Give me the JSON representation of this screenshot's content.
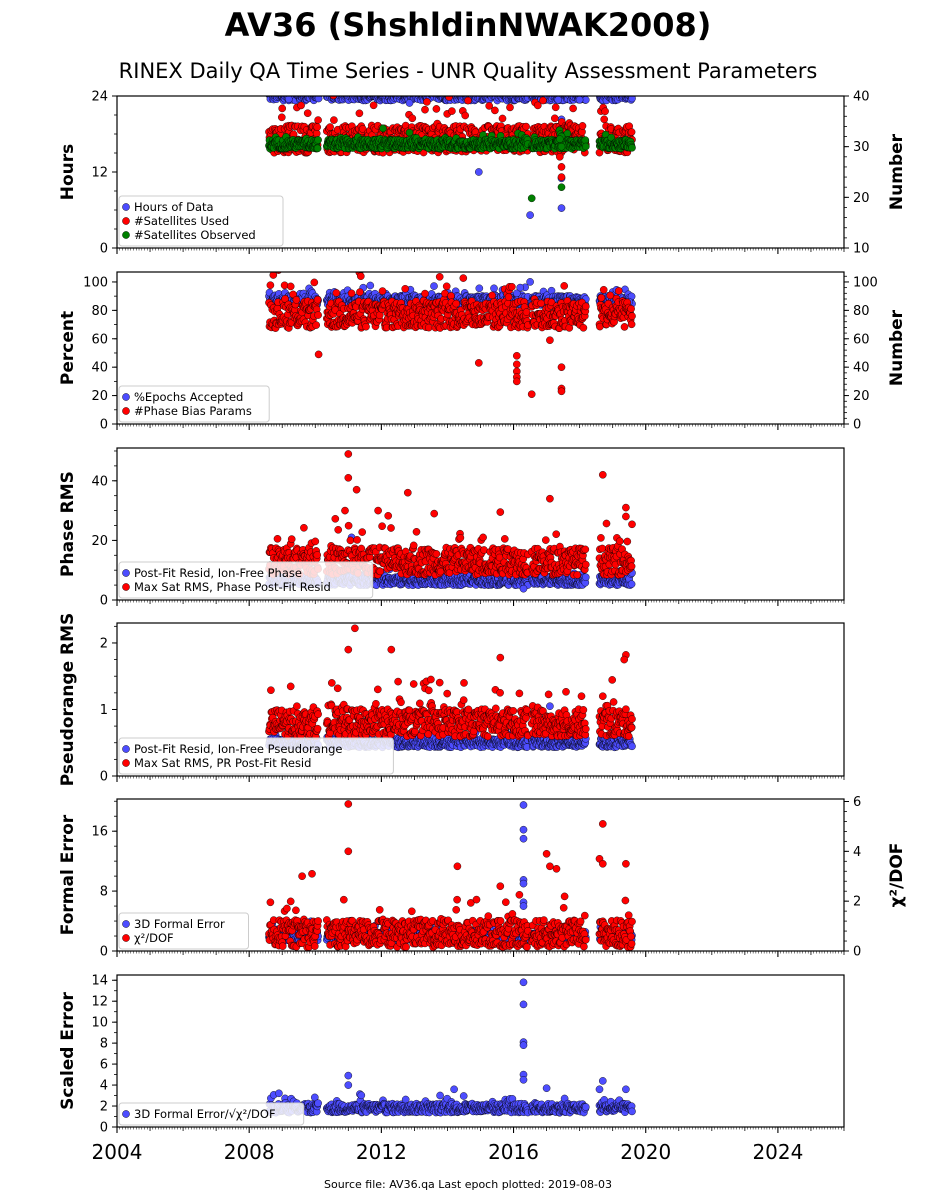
{
  "title": "AV36 (ShshldinNWAK2008)",
  "subtitle": "RINEX Daily QA Time Series - UNR Quality Assessment Parameters",
  "footer": "Source file: AV36.qa Last epoch plotted: 2019-08-03",
  "colors": {
    "blue": "#4d4dff",
    "red": "#ff0000",
    "green": "#008000"
  },
  "chart_data": {
    "type": "scatter",
    "x_range": [
      2004,
      2026
    ],
    "x_ticks": [
      2004,
      2008,
      2012,
      2016,
      2020,
      2024
    ],
    "x_tick_labels": [
      "2004",
      "2008",
      "2012",
      "2016",
      "2020",
      "2024"
    ],
    "panels": [
      {
        "ylabel": "Hours",
        "ylabel_right": "Number",
        "ylim": [
          0,
          24
        ],
        "yticks": [
          0,
          12,
          24
        ],
        "ylim_right": [
          10,
          40
        ],
        "yticks_right": [
          10,
          20,
          30,
          40
        ],
        "legend": [
          "Hours of Data",
          "#Satellites Used",
          "#Satellites Observed"
        ],
        "series": [
          {
            "name": "Hours of Data",
            "color": "blue",
            "axis": "left",
            "base": 24,
            "points": [
              [
                2010.1,
                23.6
              ],
              [
                2012.85,
                22.9
              ],
              [
                2014.95,
                12.0
              ],
              [
                2016.5,
                5.2
              ],
              [
                2017.2,
                16.5
              ],
              [
                2017.35,
                23.4
              ],
              [
                2017.45,
                20.3
              ],
              [
                2017.45,
                11.0
              ],
              [
                2017.45,
                6.3
              ],
              [
                2018.0,
                23.4
              ],
              [
                2009.2,
                23.5
              ]
            ]
          },
          {
            "name": "#Satellites Used",
            "color": "red",
            "axis": "right",
            "base": 31.5,
            "points": [
              [
                2017.4,
                28.0
              ],
              [
                2017.45,
                26.0
              ],
              [
                2017.45,
                24.0
              ],
              [
                2009.1,
                29.5
              ]
            ]
          },
          {
            "name": "#Satellites Observed",
            "color": "green",
            "axis": "right",
            "base": 30.5,
            "points": [
              [
                2016.55,
                19.8
              ],
              [
                2017.45,
                22.0
              ],
              [
                2017.45,
                30.0
              ],
              [
                2017.45,
                32.0
              ],
              [
                2017.4,
                31.5
              ]
            ]
          }
        ]
      },
      {
        "ylabel": "Percent",
        "ylabel_right": "Number",
        "ylim": [
          0,
          107
        ],
        "yticks": [
          0,
          20,
          40,
          60,
          80,
          100
        ],
        "ylim_right": [
          0,
          107
        ],
        "yticks_right": [
          0,
          20,
          40,
          60,
          80,
          100
        ],
        "legend": [
          "%Epochs Accepted",
          "#Phase Bias Params"
        ],
        "series": [
          {
            "name": "%Epochs Accepted",
            "color": "blue",
            "axis": "left",
            "base": 87,
            "points": [
              [
                2016.1,
                92
              ],
              [
                2016.2,
                96
              ],
              [
                2016.5,
                100
              ],
              [
                2019.5,
                86
              ]
            ]
          },
          {
            "name": "#Phase Bias Params",
            "color": "red",
            "axis": "right",
            "base": 77,
            "points": [
              [
                2010.1,
                49
              ],
              [
                2014.95,
                43
              ],
              [
                2016.1,
                48
              ],
              [
                2016.1,
                42
              ],
              [
                2016.1,
                37
              ],
              [
                2016.1,
                33
              ],
              [
                2016.1,
                30
              ],
              [
                2016.55,
                21
              ],
              [
                2017.1,
                59
              ],
              [
                2017.45,
                40
              ],
              [
                2017.45,
                25
              ],
              [
                2017.45,
                23
              ],
              [
                2011.1,
                92
              ]
            ]
          }
        ]
      },
      {
        "ylabel": "Phase RMS",
        "ylim": [
          0,
          51
        ],
        "yticks": [
          0,
          20,
          40
        ],
        "legend": [
          "Post-Fit Resid, Ion-Free Phase",
          "Max Sat RMS, Phase Post-Fit Resid"
        ],
        "series": [
          {
            "name": "Post-Fit Resid, Ion-Free Phase",
            "color": "blue",
            "axis": "left",
            "base": 6.5,
            "points": [
              [
                2016.3,
                3.8
              ],
              [
                2011.1,
                21
              ]
            ]
          },
          {
            "name": "Max Sat RMS, Phase Post-Fit Resid",
            "color": "red",
            "axis": "left",
            "base": 13,
            "points": [
              [
                2011.0,
                49
              ],
              [
                2011.0,
                41
              ],
              [
                2011.25,
                37
              ],
              [
                2011.9,
                30
              ],
              [
                2012.8,
                36
              ],
              [
                2017.1,
                34
              ],
              [
                2018.7,
                42
              ],
              [
                2019.4,
                31
              ],
              [
                2019.4,
                28
              ],
              [
                2015.6,
                29.5
              ],
              [
                2013.6,
                29
              ],
              [
                2010.9,
                30
              ]
            ]
          }
        ]
      },
      {
        "ylabel": "Pseudorange RMS",
        "ylim": [
          0,
          2.3
        ],
        "yticks": [
          0,
          1,
          2
        ],
        "legend": [
          "Post-Fit Resid, Ion-Free Pseudorange",
          "Max Sat RMS, PR Post-Fit Resid"
        ],
        "series": [
          {
            "name": "Post-Fit Resid, Ion-Free Pseudorange",
            "color": "blue",
            "axis": "left",
            "base": 0.5,
            "points": [
              [
                2017.1,
                1.05
              ]
            ]
          },
          {
            "name": "Max Sat RMS, PR Post-Fit Resid",
            "color": "red",
            "axis": "left",
            "base": 0.8,
            "points": [
              [
                2011.2,
                2.22
              ],
              [
                2011.0,
                1.9
              ],
              [
                2012.3,
                1.9
              ],
              [
                2015.6,
                1.78
              ],
              [
                2019.4,
                1.82
              ],
              [
                2019.35,
                1.75
              ],
              [
                2018.7,
                1.2
              ],
              [
                2010.5,
                1.4
              ],
              [
                2013.5,
                1.45
              ],
              [
                2014.5,
                1.4
              ]
            ]
          }
        ]
      },
      {
        "ylabel": "Formal Error",
        "ylabel_right": "χ²/DOF",
        "ylim": [
          0,
          20.3
        ],
        "yticks": [
          0,
          8,
          16
        ],
        "ylim_right": [
          0,
          6.1
        ],
        "yticks_right": [
          0,
          2,
          4,
          6
        ],
        "legend": [
          "3D Formal Error",
          "χ²/DOF"
        ],
        "series": [
          {
            "name": "3D Formal Error",
            "color": "blue",
            "axis": "left",
            "base": 2,
            "points": [
              [
                2016.3,
                19.5
              ],
              [
                2016.3,
                16.2
              ],
              [
                2016.3,
                15.0
              ],
              [
                2016.3,
                9.5
              ],
              [
                2016.3,
                9.0
              ],
              [
                2016.3,
                6.5
              ],
              [
                2016.3,
                6.0
              ]
            ]
          },
          {
            "name": "χ²/DOF",
            "color": "red",
            "axis": "right",
            "base": 0.7,
            "points": [
              [
                2011.0,
                5.9
              ],
              [
                2011.0,
                4.0
              ],
              [
                2018.7,
                5.1
              ],
              [
                2018.6,
                3.7
              ],
              [
                2018.7,
                3.5
              ],
              [
                2017.0,
                3.9
              ],
              [
                2017.1,
                3.4
              ],
              [
                2017.3,
                3.3
              ],
              [
                2019.4,
                3.5
              ],
              [
                2014.3,
                3.4
              ],
              [
                2009.6,
                3.0
              ],
              [
                2009.9,
                3.1
              ],
              [
                2015.6,
                2.6
              ]
            ]
          }
        ]
      },
      {
        "ylabel": "Scaled Error",
        "ylim": [
          0,
          14.5
        ],
        "yticks": [
          0,
          2,
          4,
          6,
          8,
          10,
          12,
          14
        ],
        "legend": [
          "3D Formal Error/√χ²/DOF"
        ],
        "series": [
          {
            "name": "3D Formal Error/√χ²/DOF",
            "color": "blue",
            "axis": "left",
            "base": 1.8,
            "points": [
              [
                2016.3,
                13.8
              ],
              [
                2016.3,
                11.7
              ],
              [
                2016.3,
                8.1
              ],
              [
                2016.3,
                7.8
              ],
              [
                2016.3,
                5.0
              ],
              [
                2016.3,
                4.5
              ],
              [
                2011.0,
                4.9
              ],
              [
                2011.0,
                4.0
              ],
              [
                2018.7,
                4.4
              ],
              [
                2018.6,
                3.6
              ],
              [
                2017.0,
                3.7
              ],
              [
                2019.4,
                3.6
              ],
              [
                2014.2,
                3.6
              ]
            ]
          }
        ]
      }
    ]
  }
}
